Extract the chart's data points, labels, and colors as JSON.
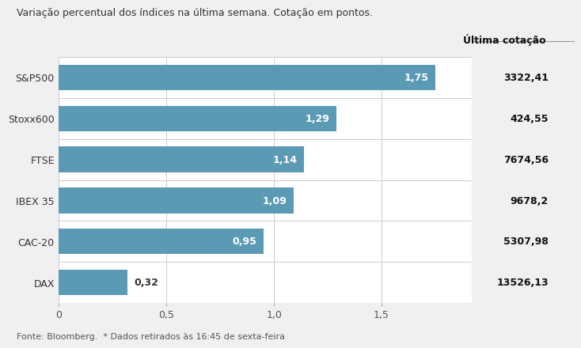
{
  "title": "Variação percentual dos índices na última semana. Cotação em pontos.",
  "col_header": "Última cotação",
  "categories": [
    "S&P500",
    "Stoxx600",
    "FTSE",
    "IBEX 35",
    "CAC-20",
    "DAX"
  ],
  "values": [
    1.75,
    1.29,
    1.14,
    1.09,
    0.95,
    0.32
  ],
  "last_quotes": [
    "3322,41",
    "424,55",
    "7674,56",
    "9678,2",
    "5307,98",
    "13526,13"
  ],
  "bar_color": "#5b9ab5",
  "bar_text_color_white": "#ffffff",
  "bar_text_color_dark": "#333333",
  "background_color": "#f0f0f0",
  "plot_background_color": "#ffffff",
  "source_text": "Fonte: Bloomberg.  * Dados retirados às 16:45 de sexta-feira",
  "xlim": [
    0,
    1.92
  ],
  "xticks": [
    0,
    0.5,
    1.0,
    1.5
  ],
  "xtick_labels": [
    "0",
    "0,5",
    "1,0",
    "1,5"
  ],
  "title_fontsize": 9,
  "label_fontsize": 9,
  "bar_label_fontsize": 9,
  "quote_fontsize": 9,
  "source_fontsize": 8,
  "bar_height": 0.62
}
